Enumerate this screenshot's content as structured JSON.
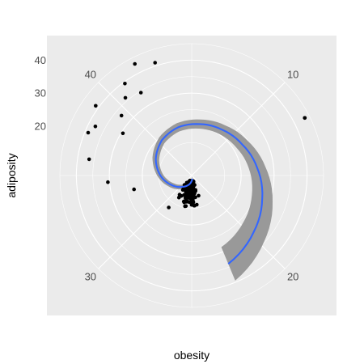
{
  "chart_data": {
    "type": "scatter",
    "coord": "polar",
    "title": "",
    "xlabel": "obesity",
    "ylabel": "adiposity",
    "theta_range": [
      5,
      45
    ],
    "r_range": [
      5,
      45
    ],
    "theta_ticks": [
      10,
      20,
      30,
      40
    ],
    "r_ticks": [
      20,
      30,
      40
    ],
    "grid": true,
    "legend": "none",
    "colors": {
      "panel": "#ebebeb",
      "grid": "#ffffff",
      "points": "#000000",
      "smooth": "#3366ff",
      "ribbon": "#999999"
    },
    "smooth": [
      {
        "theta": 24.0,
        "y": 6.0,
        "lo": 5.0,
        "hi": 7.0
      },
      {
        "theta": 26.75,
        "y": 7.8,
        "lo": 6.8,
        "hi": 8.8
      },
      {
        "theta": 29.5,
        "y": 9.5,
        "lo": 8.5,
        "hi": 10.5
      },
      {
        "theta": 32.25,
        "y": 11.8,
        "lo": 10.8,
        "hi": 12.8
      },
      {
        "theta": 35.0,
        "y": 14.5,
        "lo": 13.5,
        "hi": 15.5
      },
      {
        "theta": 37.75,
        "y": 17.0,
        "lo": 15.9,
        "hi": 18.1
      },
      {
        "theta": 40.5,
        "y": 19.0,
        "lo": 17.8,
        "hi": 20.2
      },
      {
        "theta": 43.25,
        "y": 20.2,
        "lo": 18.9,
        "hi": 21.5
      },
      {
        "theta": 46.0,
        "y": 20.8,
        "lo": 19.4,
        "hi": 22.2
      },
      {
        "theta": 48.75,
        "y": 21.7,
        "lo": 20.1,
        "hi": 23.3
      },
      {
        "theta": 51.5,
        "y": 23.0,
        "lo": 21.0,
        "hi": 25.0
      },
      {
        "theta": 54.25,
        "y": 25.0,
        "lo": 22.5,
        "hi": 27.5
      },
      {
        "theta": 57.0,
        "y": 27.5,
        "lo": 24.2,
        "hi": 30.8
      },
      {
        "theta": 59.75,
        "y": 30.5,
        "lo": 26.2,
        "hi": 34.8
      },
      {
        "theta": 62.5,
        "y": 34.0,
        "lo": 28.5,
        "hi": 39.5
      }
    ]
  }
}
